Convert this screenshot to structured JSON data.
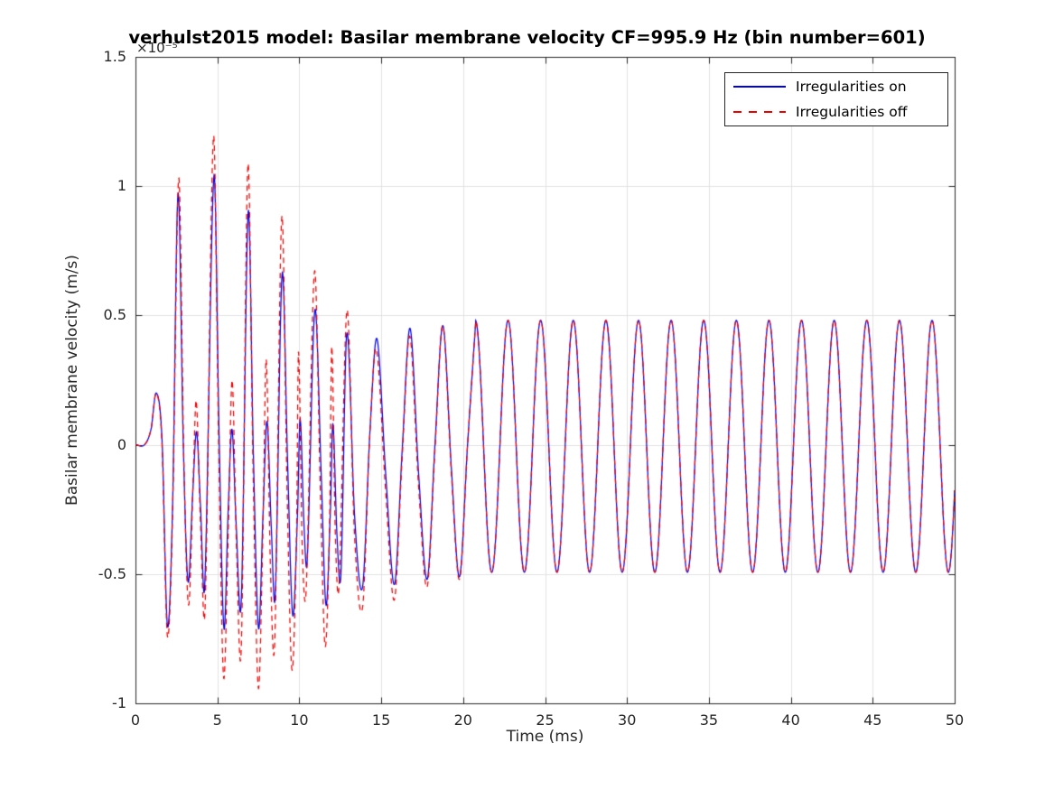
{
  "chart_data": {
    "type": "line",
    "title": "verhulst2015 model: Basilar membrane velocity CF=995.9 Hz (bin number=601)",
    "xlabel": "Time (ms)",
    "ylabel": "Basilar membrane velocity (m/s)",
    "y_axis_multiplier": "×10⁻⁵",
    "xlim": [
      0,
      50
    ],
    "ylim": [
      -1,
      1.5
    ],
    "x_ticks": [
      0,
      5,
      10,
      15,
      20,
      25,
      30,
      35,
      40,
      45,
      50
    ],
    "y_ticks": [
      -1,
      -0.5,
      0,
      0.5,
      1,
      1.5
    ],
    "x_tick_labels": [
      "0",
      "5",
      "10",
      "15",
      "20",
      "25",
      "30",
      "35",
      "40",
      "45",
      "50"
    ],
    "y_tick_labels": [
      "-1",
      "-0.5",
      "0",
      "0.5",
      "1",
      "1.5"
    ],
    "grid": true,
    "colors": {
      "grid": "#E2E2E2",
      "axis": "#262626",
      "tick_label": "#262626",
      "title": "#000000",
      "blue_line": "#0000E8",
      "red_line": "#ED0000"
    },
    "legend": {
      "position": "top-right",
      "entries": [
        {
          "label": "Irregularities on",
          "color": "#0000E8",
          "style": "solid"
        },
        {
          "label": "Irregularities off",
          "color": "#ED0000",
          "style": "dashed"
        }
      ]
    },
    "series": [
      {
        "name": "Irregularities on",
        "color": "#0000E8",
        "style": "solid",
        "transient_keypoints": [
          [
            0,
            0
          ],
          [
            0.55,
            0
          ],
          [
            0.95,
            0.06
          ],
          [
            1.27,
            0.2
          ],
          [
            1.62,
            0.02
          ],
          [
            1.95,
            -0.7
          ],
          [
            2.26,
            -0.25
          ],
          [
            2.6,
            0.97
          ],
          [
            2.92,
            0.0
          ],
          [
            3.21,
            -0.53
          ],
          [
            3.5,
            -0.18
          ],
          [
            3.73,
            0.05
          ],
          [
            3.97,
            -0.24
          ],
          [
            4.23,
            -0.54
          ],
          [
            4.79,
            1.04
          ],
          [
            5.1,
            0.05
          ],
          [
            5.4,
            -0.71
          ],
          [
            5.66,
            -0.25
          ],
          [
            5.89,
            0.06
          ],
          [
            6.14,
            -0.3
          ],
          [
            6.46,
            -0.6
          ],
          [
            6.88,
            0.9
          ],
          [
            7.19,
            -0.02
          ],
          [
            7.51,
            -0.71
          ],
          [
            7.79,
            -0.26
          ],
          [
            8.03,
            0.09
          ],
          [
            8.29,
            -0.32
          ],
          [
            8.53,
            -0.58
          ],
          [
            8.95,
            0.66
          ],
          [
            9.29,
            -0.08
          ],
          [
            9.6,
            -0.66
          ],
          [
            9.89,
            -0.27
          ],
          [
            10.05,
            0.1
          ],
          [
            10.28,
            -0.3
          ],
          [
            10.48,
            -0.45
          ],
          [
            10.95,
            0.52
          ],
          [
            11.34,
            -0.12
          ],
          [
            11.63,
            -0.62
          ],
          [
            11.9,
            -0.25
          ],
          [
            12.05,
            0.08
          ],
          [
            12.3,
            -0.35
          ],
          [
            12.54,
            -0.5
          ],
          [
            12.9,
            0.43
          ],
          [
            13.38,
            -0.28
          ],
          [
            13.86,
            -0.55
          ],
          [
            14.31,
            0.05
          ],
          [
            14.74,
            0.41
          ],
          [
            15.28,
            -0.12
          ],
          [
            15.81,
            -0.54
          ],
          [
            16.28,
            -0.02
          ],
          [
            16.76,
            0.45
          ],
          [
            17.29,
            -0.12
          ],
          [
            17.81,
            -0.52
          ],
          [
            18.28,
            0.0
          ],
          [
            18.77,
            0.46
          ],
          [
            19.29,
            -0.1
          ],
          [
            19.78,
            -0.51
          ],
          [
            20.27,
            0.0
          ],
          [
            20.76,
            0.47
          ]
        ],
        "steady_state": {
          "start": 20.76,
          "end": 50,
          "amplitude": 0.487,
          "offset": -0.006,
          "period": 1.9907,
          "peak_time": 48.62
        }
      },
      {
        "name": "Irregularities off",
        "color": "#ED0000",
        "style": "dashed",
        "transient_keypoints": [
          [
            0,
            0
          ],
          [
            0.55,
            0
          ],
          [
            0.95,
            0.06
          ],
          [
            1.27,
            0.2
          ],
          [
            1.62,
            0.0
          ],
          [
            1.95,
            -0.74
          ],
          [
            2.26,
            -0.28
          ],
          [
            2.64,
            1.03
          ],
          [
            2.95,
            -0.05
          ],
          [
            3.24,
            -0.62
          ],
          [
            3.53,
            -0.12
          ],
          [
            3.71,
            0.17
          ],
          [
            3.97,
            -0.3
          ],
          [
            4.25,
            -0.63
          ],
          [
            4.76,
            1.19
          ],
          [
            5.08,
            0.0
          ],
          [
            5.38,
            -0.9
          ],
          [
            5.67,
            -0.32
          ],
          [
            5.9,
            0.25
          ],
          [
            6.16,
            -0.38
          ],
          [
            6.46,
            -0.78
          ],
          [
            6.86,
            1.08
          ],
          [
            7.18,
            -0.1
          ],
          [
            7.5,
            -0.94
          ],
          [
            7.78,
            -0.33
          ],
          [
            7.98,
            0.33
          ],
          [
            8.24,
            -0.48
          ],
          [
            8.5,
            -0.76
          ],
          [
            8.93,
            0.88
          ],
          [
            9.26,
            -0.2
          ],
          [
            9.55,
            -0.87
          ],
          [
            9.83,
            -0.35
          ],
          [
            9.95,
            0.36
          ],
          [
            10.18,
            -0.4
          ],
          [
            10.42,
            -0.56
          ],
          [
            10.93,
            0.67
          ],
          [
            11.3,
            -0.22
          ],
          [
            11.58,
            -0.78
          ],
          [
            11.85,
            -0.3
          ],
          [
            11.98,
            0.38
          ],
          [
            12.2,
            -0.35
          ],
          [
            12.42,
            -0.55
          ],
          [
            12.91,
            0.52
          ],
          [
            13.37,
            -0.35
          ],
          [
            13.86,
            -0.63
          ],
          [
            14.29,
            0.02
          ],
          [
            14.7,
            0.37
          ],
          [
            15.27,
            -0.18
          ],
          [
            15.8,
            -0.6
          ],
          [
            16.27,
            -0.06
          ],
          [
            16.74,
            0.42
          ],
          [
            17.28,
            -0.16
          ],
          [
            17.8,
            -0.55
          ],
          [
            18.28,
            -0.02
          ],
          [
            18.76,
            0.46
          ],
          [
            19.29,
            -0.12
          ],
          [
            19.78,
            -0.52
          ],
          [
            20.27,
            0.0
          ],
          [
            20.76,
            0.47
          ]
        ],
        "steady_state": {
          "start": 20.76,
          "end": 50,
          "amplitude": 0.487,
          "offset": -0.006,
          "period": 1.9907,
          "peak_time": 48.62
        }
      }
    ]
  }
}
